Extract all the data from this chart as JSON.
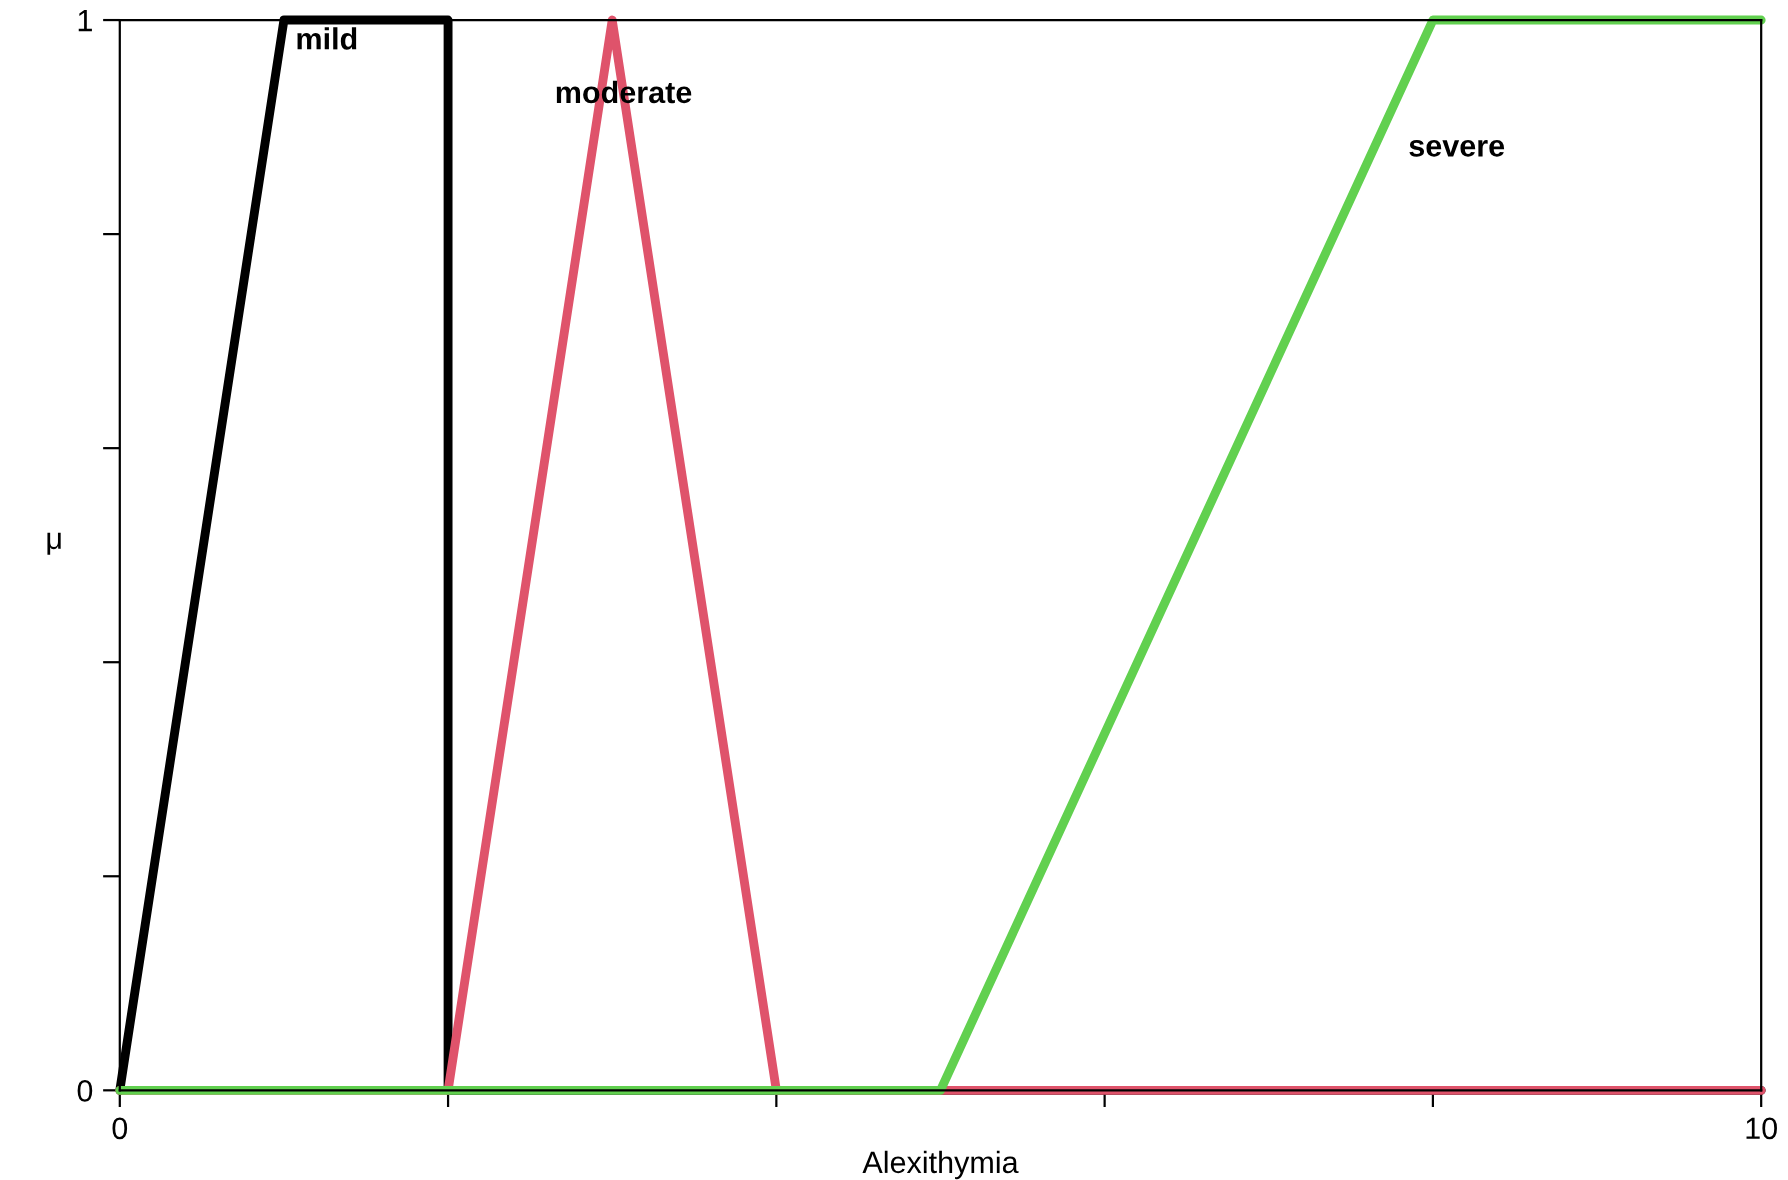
{
  "chart_data": {
    "type": "line",
    "xlabel": "Alexithymia",
    "ylabel": "μ",
    "series": [
      {
        "name": "mild",
        "color": "#000000",
        "x": [
          0,
          1,
          2,
          2,
          10
        ],
        "values": [
          0,
          1,
          1,
          0,
          0
        ]
      },
      {
        "name": "moderate",
        "color": "#df536b",
        "x": [
          0,
          2,
          3,
          4,
          10
        ],
        "values": [
          0,
          0,
          1,
          0,
          0
        ]
      },
      {
        "name": "severe",
        "color": "#61d04f",
        "x": [
          0,
          5,
          8,
          10
        ],
        "values": [
          0,
          0,
          1,
          1
        ]
      }
    ],
    "xlim": [
      0,
      10
    ],
    "ylim": [
      0,
      1
    ],
    "xticks": [
      0,
      {
        "value": 2,
        "label": null
      },
      {
        "value": 4,
        "label": null
      },
      {
        "value": 6,
        "label": null
      },
      {
        "value": 8,
        "label": null
      },
      10
    ],
    "yticks": [
      0,
      {
        "value": 0.2,
        "label": null
      },
      {
        "value": 0.4,
        "label": null
      },
      {
        "value": 0.6,
        "label": null
      },
      {
        "value": 0.8,
        "label": null
      },
      1
    ],
    "grid": false,
    "legend": false,
    "marker": "none",
    "line_style": "solid"
  }
}
